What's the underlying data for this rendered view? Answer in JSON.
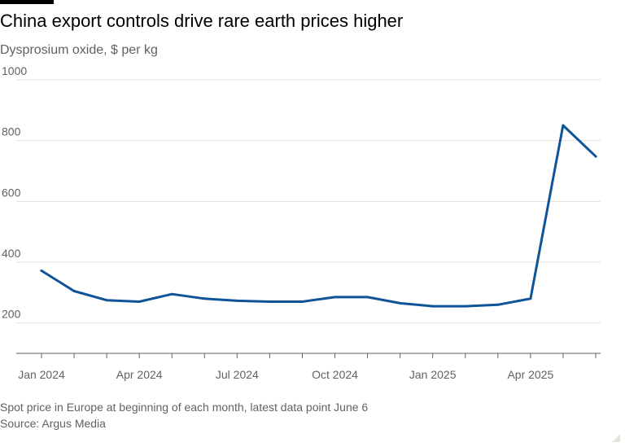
{
  "title": "China export controls drive rare earth prices higher",
  "subtitle": "Dysprosium oxide, $ per kg",
  "footnote": "Spot price in Europe at beginning of each month, latest data point June 6",
  "source": "Source: Argus Media",
  "colors": {
    "line": "#0f5499",
    "grid": "#e6e2de",
    "axis": "#66605c",
    "text": "#66605c"
  },
  "chart_data": {
    "type": "line",
    "title": "China export controls drive rare earth prices higher",
    "subtitle": "Dysprosium oxide, $ per kg",
    "ylabel": "",
    "xlabel": "",
    "ylim": [
      100,
      1000
    ],
    "yticks": [
      200,
      400,
      600,
      800,
      1000
    ],
    "grid": true,
    "x": [
      "2024-01",
      "2024-02",
      "2024-03",
      "2024-04",
      "2024-05",
      "2024-06",
      "2024-07",
      "2024-08",
      "2024-09",
      "2024-10",
      "2024-11",
      "2024-12",
      "2025-01",
      "2025-02",
      "2025-03",
      "2025-04",
      "2025-05",
      "2025-06"
    ],
    "xtick_labels": [
      {
        "x": "2024-01",
        "label": "Jan 2024"
      },
      {
        "x": "2024-04",
        "label": "Apr 2024"
      },
      {
        "x": "2024-07",
        "label": "Jul 2024"
      },
      {
        "x": "2024-10",
        "label": "Oct 2024"
      },
      {
        "x": "2025-01",
        "label": "Jan 2025"
      },
      {
        "x": "2025-04",
        "label": "Apr 2025"
      }
    ],
    "series": [
      {
        "values": [
          372,
          305,
          275,
          270,
          295,
          280,
          273,
          270,
          270,
          285,
          285,
          265,
          255,
          255,
          260,
          280,
          850,
          748
        ]
      }
    ]
  }
}
